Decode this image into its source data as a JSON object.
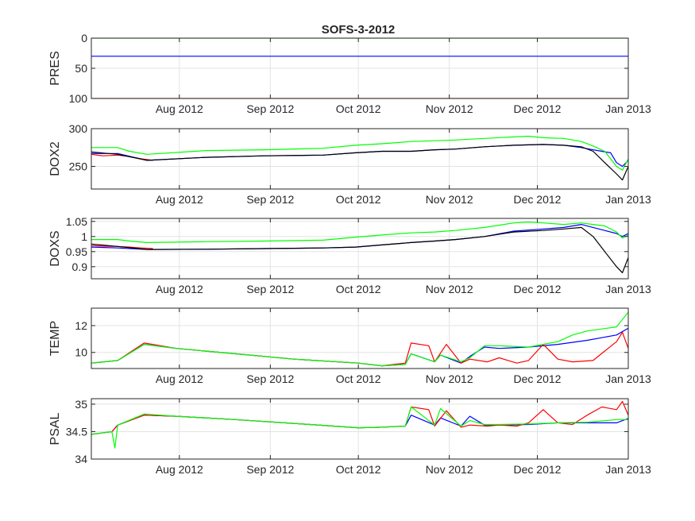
{
  "chart_data": {
    "title": "SOFS-3-2012",
    "type": "line",
    "x_tick_labels": [
      "Aug 2012",
      "Sep 2012",
      "Oct 2012",
      "Nov 2012",
      "Dec 2012",
      "Jan 2013"
    ],
    "x_tick_days": [
      31,
      62,
      92,
      123,
      153,
      184
    ],
    "x_range_days": [
      1,
      184
    ],
    "x_note": "days since 2012-07-01 (Aug 1 = 31, Jan 1 2013 = 184)",
    "grid": true,
    "series_colors": [
      "#ff0000",
      "#0000ff",
      "#00ff00",
      "#000000"
    ],
    "charts": [
      {
        "ylabel": "PRES",
        "y_reversed": true,
        "ylim": [
          0,
          100
        ],
        "y_ticks": [
          0,
          50,
          100
        ],
        "y_tick_labels": [
          "0",
          "50",
          "100"
        ],
        "series": [
          {
            "color": "#00ff00",
            "x": [
              1,
              184
            ],
            "y": [
              0,
              0
            ]
          },
          {
            "color": "#0000ff",
            "x": [
              1,
              184
            ],
            "y": [
              30,
              30
            ]
          },
          {
            "color": "#ff0000",
            "x": [
              1,
              184
            ],
            "y": [
              100,
              100
            ]
          }
        ]
      },
      {
        "ylabel": "DOX2",
        "y_reversed": false,
        "ylim": [
          220,
          300
        ],
        "y_ticks": [
          250,
          300
        ],
        "y_tick_labels": [
          "250",
          "300"
        ],
        "series": [
          {
            "color": "#ff0000",
            "x": [
              1,
              5,
              10,
              14,
              18,
              22
            ],
            "y": [
              266,
              264,
              265,
              263,
              260,
              258
            ]
          },
          {
            "color": "#0000ff",
            "x": [
              1,
              10,
              20,
              40,
              60,
              80,
              91,
              100,
              110,
              118,
              125,
              135,
              145,
              155,
              162,
              168,
              172,
              175,
              178,
              180,
              182,
              184
            ],
            "y": [
              267,
              267,
              258,
              262,
              264,
              265,
              268,
              270,
              270,
              272,
              273,
              276,
              278,
              279,
              278,
              275,
              272,
              270,
              268,
              255,
              250,
              258
            ]
          },
          {
            "color": "#00ff00",
            "x": [
              1,
              10,
              14,
              20,
              40,
              60,
              80,
              91,
              100,
              110,
              118,
              125,
              135,
              145,
              150,
              155,
              162,
              168,
              172,
              176,
              180,
              182,
              184
            ],
            "y": [
              275,
              275,
              270,
              266,
              271,
              272,
              274,
              278,
              280,
              283,
              284,
              285,
              287,
              289,
              290,
              288,
              287,
              283,
              277,
              270,
              250,
              245,
              260
            ]
          },
          {
            "color": "#000000",
            "x": [
              1,
              10,
              20,
              40,
              60,
              80,
              91,
              100,
              110,
              118,
              125,
              135,
              145,
              155,
              162,
              168,
              172,
              176,
              180,
              182,
              184
            ],
            "y": [
              269,
              266,
              258,
              262,
              264,
              265,
              268,
              270,
              270,
              272,
              273,
              276,
              278,
              279,
              278,
              276,
              270,
              255,
              240,
              232,
              250
            ]
          }
        ]
      },
      {
        "ylabel": "DOXS",
        "y_reversed": false,
        "ylim": [
          0.86,
          1.06
        ],
        "y_ticks": [
          0.9,
          0.95,
          1,
          1.05
        ],
        "y_tick_labels": [
          "0.9",
          "0.95",
          "1",
          "1.05"
        ],
        "series": [
          {
            "color": "#ff0000",
            "x": [
              1,
              5,
              10,
              14,
              18,
              22
            ],
            "y": [
              0.97,
              0.968,
              0.967,
              0.965,
              0.962,
              0.96
            ]
          },
          {
            "color": "#0000ff",
            "x": [
              1,
              10,
              20,
              40,
              60,
              80,
              91,
              100,
              110,
              118,
              125,
              135,
              145,
              155,
              162,
              168,
              172,
              176,
              180,
              182,
              184
            ],
            "y": [
              0.965,
              0.962,
              0.957,
              0.958,
              0.96,
              0.962,
              0.965,
              0.972,
              0.98,
              0.985,
              0.99,
              1.0,
              1.018,
              1.025,
              1.03,
              1.04,
              1.03,
              1.02,
              1.01,
              1.0,
              1.01
            ]
          },
          {
            "color": "#00ff00",
            "x": [
              1,
              10,
              14,
              20,
              40,
              60,
              80,
              91,
              100,
              110,
              118,
              125,
              135,
              145,
              150,
              155,
              162,
              168,
              172,
              176,
              180,
              182,
              184
            ],
            "y": [
              0.99,
              0.99,
              0.985,
              0.98,
              0.983,
              0.985,
              0.988,
              0.998,
              1.005,
              1.012,
              1.015,
              1.02,
              1.03,
              1.045,
              1.048,
              1.045,
              1.04,
              1.045,
              1.04,
              1.035,
              1.015,
              0.995,
              1.005
            ]
          },
          {
            "color": "#000000",
            "x": [
              1,
              10,
              20,
              40,
              60,
              80,
              91,
              100,
              110,
              118,
              125,
              135,
              145,
              155,
              162,
              168,
              172,
              176,
              180,
              182,
              184
            ],
            "y": [
              0.975,
              0.967,
              0.957,
              0.958,
              0.96,
              0.962,
              0.965,
              0.972,
              0.98,
              0.985,
              0.99,
              1.0,
              1.015,
              1.02,
              1.025,
              1.03,
              1.0,
              0.95,
              0.9,
              0.88,
              0.93
            ]
          }
        ]
      },
      {
        "ylabel": "TEMP",
        "y_reversed": false,
        "ylim": [
          8.8,
          13.3
        ],
        "y_ticks": [
          10,
          12
        ],
        "y_tick_labels": [
          "10",
          "12"
        ],
        "series": [
          {
            "color": "#0000ff",
            "x": [
              1,
              10,
              19,
              30,
              50,
              70,
              92,
              100,
              108,
              110,
              118,
              120,
              127,
              130,
              135,
              140,
              150,
              160,
              170,
              180,
              184
            ],
            "y": [
              9.2,
              9.4,
              10.6,
              10.3,
              9.9,
              9.5,
              9.2,
              9.0,
              9.1,
              9.9,
              9.3,
              9.8,
              9.2,
              9.7,
              10.4,
              10.3,
              10.4,
              10.6,
              10.9,
              11.3,
              11.8
            ]
          },
          {
            "color": "#ff0000",
            "x": [
              1,
              10,
              19,
              30,
              50,
              70,
              92,
              100,
              108,
              110,
              116,
              118,
              122,
              127,
              130,
              136,
              140,
              146,
              150,
              155,
              160,
              165,
              172,
              176,
              180,
              182,
              184
            ],
            "y": [
              9.2,
              9.4,
              10.7,
              10.3,
              9.9,
              9.5,
              9.2,
              9.0,
              9.2,
              10.7,
              10.5,
              9.3,
              10.6,
              9.2,
              9.5,
              9.3,
              9.6,
              9.2,
              9.4,
              10.6,
              9.5,
              9.3,
              9.4,
              10.1,
              10.8,
              11.5,
              10.3
            ]
          },
          {
            "color": "#00ff00",
            "x": [
              1,
              10,
              19,
              30,
              50,
              70,
              92,
              100,
              108,
              110,
              118,
              120,
              127,
              130,
              135,
              140,
              150,
              160,
              165,
              170,
              180,
              184
            ],
            "y": [
              9.2,
              9.4,
              10.6,
              10.3,
              9.9,
              9.5,
              9.2,
              9.0,
              9.1,
              9.9,
              9.3,
              9.8,
              9.3,
              9.6,
              10.5,
              10.5,
              10.4,
              10.8,
              11.3,
              11.6,
              11.9,
              13.0
            ]
          }
        ]
      },
      {
        "ylabel": "PSAL",
        "y_reversed": false,
        "ylim": [
          34.0,
          35.1
        ],
        "y_ticks": [
          34,
          34.5,
          35
        ],
        "y_tick_labels": [
          "34",
          "34.5",
          "35"
        ],
        "series": [
          {
            "color": "#0000ff",
            "x": [
              1,
              8,
              10,
              19,
              30,
              50,
              70,
              92,
              100,
              108,
              110,
              118,
              120,
              127,
              130,
              135,
              140,
              150,
              160,
              170,
              180,
              184
            ],
            "y": [
              34.45,
              34.5,
              34.62,
              34.8,
              34.78,
              34.72,
              34.65,
              34.57,
              34.58,
              34.6,
              34.8,
              34.62,
              34.75,
              34.6,
              34.78,
              34.62,
              34.62,
              34.63,
              34.66,
              34.66,
              34.66,
              34.74
            ]
          },
          {
            "color": "#ff0000",
            "x": [
              1,
              8,
              10,
              19,
              30,
              50,
              70,
              92,
              100,
              108,
              110,
              116,
              118,
              122,
              127,
              130,
              136,
              140,
              146,
              150,
              155,
              160,
              165,
              170,
              175,
              180,
              182,
              184
            ],
            "y": [
              34.45,
              34.5,
              34.62,
              34.8,
              34.78,
              34.72,
              34.65,
              34.57,
              34.58,
              34.6,
              34.95,
              34.9,
              34.6,
              34.88,
              34.58,
              34.62,
              34.6,
              34.62,
              34.6,
              34.66,
              34.9,
              34.66,
              34.63,
              34.8,
              34.95,
              34.9,
              35.05,
              34.8
            ]
          },
          {
            "color": "#00ff00",
            "x": [
              1,
              8,
              9,
              10,
              19,
              30,
              50,
              70,
              92,
              100,
              108,
              110,
              118,
              120,
              127,
              130,
              135,
              140,
              150,
              160,
              170,
              180,
              184
            ],
            "y": [
              34.45,
              34.5,
              34.2,
              34.62,
              34.82,
              34.78,
              34.72,
              34.65,
              34.57,
              34.58,
              34.6,
              34.95,
              34.62,
              34.92,
              34.6,
              34.7,
              34.63,
              34.63,
              34.64,
              34.66,
              34.67,
              34.72,
              34.72
            ]
          }
        ]
      }
    ]
  }
}
